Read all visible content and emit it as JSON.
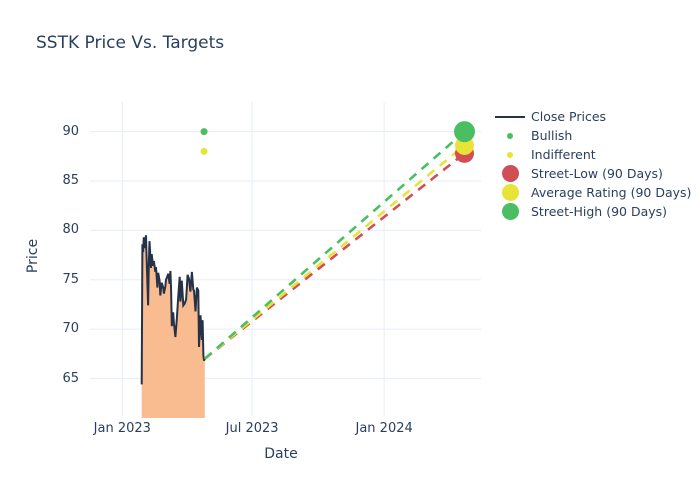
{
  "title": "SSTK Price Vs. Targets",
  "axes": {
    "x": {
      "title": "Date"
    },
    "y": {
      "title": "Price"
    }
  },
  "colors": {
    "text": "#2a3f5f",
    "grid": "#ebf0f8",
    "close_line": "#263247",
    "close_fill": "#f9bb90",
    "bullish_green": "#49bf62",
    "indifferent_yellow": "#e7e338",
    "street_low_red": "#d14e54"
  },
  "legend": {
    "position": "right",
    "items": [
      {
        "label": "Close Prices",
        "type": "line",
        "color": "#263247"
      },
      {
        "label": "Bullish",
        "type": "dot",
        "color": "#49bf62",
        "size": 6
      },
      {
        "label": "Indifferent",
        "type": "dot",
        "color": "#e7e338",
        "size": 6
      },
      {
        "label": "Street-Low (90 Days)",
        "type": "circle",
        "color": "#d14e54",
        "size": 17
      },
      {
        "label": "Average Rating (90 Days)",
        "type": "circle",
        "color": "#e7e338",
        "size": 17
      },
      {
        "label": "Street-High (90 Days)",
        "type": "circle",
        "color": "#49bf62",
        "size": 17
      }
    ]
  },
  "chart_data": {
    "type": "line",
    "title": "SSTK Price Vs. Targets",
    "xlabel": "Date",
    "ylabel": "Price",
    "x_unit": "days since 2023-01-01",
    "x_range": [
      -45,
      500
    ],
    "y_range": [
      61,
      93
    ],
    "grid": true,
    "legend_position": "right",
    "x_ticks": [
      {
        "day": 0,
        "label": "Jan 2023"
      },
      {
        "day": 181,
        "label": "Jul 2023"
      },
      {
        "day": 365,
        "label": "Jan 2024"
      }
    ],
    "y_ticks": [
      65,
      70,
      75,
      80,
      85,
      90
    ],
    "series": [
      {
        "name": "Close Prices",
        "type": "area-line",
        "color": "#263247",
        "fill": "#f9bb90",
        "points": [
          [
            27,
            64.4
          ],
          [
            28,
            78.6
          ],
          [
            29,
            77.8
          ],
          [
            30,
            79.3
          ],
          [
            31,
            78.2
          ],
          [
            33,
            79.5
          ],
          [
            34,
            76.9
          ],
          [
            36,
            72.4
          ],
          [
            37,
            76.5
          ],
          [
            38,
            78.9
          ],
          [
            40,
            76.2
          ],
          [
            41,
            77.6
          ],
          [
            43,
            76.4
          ],
          [
            44,
            76.9
          ],
          [
            46,
            75.8
          ],
          [
            47,
            76.3
          ],
          [
            49,
            74.2
          ],
          [
            50,
            75.7
          ],
          [
            52,
            74.9
          ],
          [
            53,
            73.4
          ],
          [
            55,
            74.7
          ],
          [
            57,
            74.2
          ],
          [
            58,
            73.6
          ],
          [
            60,
            74.3
          ],
          [
            61,
            75.0
          ],
          [
            63,
            75.4
          ],
          [
            64,
            75.6
          ],
          [
            66,
            74.6
          ],
          [
            67,
            75.9
          ],
          [
            68,
            74.0
          ],
          [
            69,
            70.3
          ],
          [
            71,
            71.7
          ],
          [
            72,
            70.6
          ],
          [
            74,
            69.2
          ],
          [
            76,
            71.0
          ],
          [
            78,
            73.2
          ],
          [
            80,
            75.3
          ],
          [
            81,
            72.8
          ],
          [
            83,
            74.9
          ],
          [
            85,
            72.4
          ],
          [
            87,
            72.6
          ],
          [
            89,
            73.0
          ],
          [
            91,
            75.5
          ],
          [
            93,
            75.1
          ],
          [
            95,
            73.8
          ],
          [
            97,
            75.8
          ],
          [
            99,
            74.0
          ],
          [
            100,
            73.9
          ],
          [
            102,
            71.8
          ],
          [
            104,
            74.2
          ],
          [
            106,
            73.9
          ],
          [
            107,
            68.2
          ],
          [
            109,
            71.4
          ],
          [
            111,
            68.9
          ],
          [
            112,
            70.9
          ],
          [
            113,
            67.3
          ],
          [
            114,
            66.8
          ],
          [
            115,
            67.0
          ]
        ]
      },
      {
        "name": "Bullish",
        "type": "scatter",
        "color": "#49bf62",
        "size": 7,
        "points": [
          [
            114,
            90.0
          ]
        ]
      },
      {
        "name": "Indifferent",
        "type": "scatter",
        "color": "#e7e338",
        "size": 7,
        "points": [
          [
            114,
            88.0
          ]
        ]
      },
      {
        "name": "Street-Low (90 Days)",
        "type": "dashed-line-marker",
        "color": "#d14e54",
        "size": 19,
        "points": [
          [
            115,
            67.0
          ],
          [
            477,
            87.8
          ]
        ]
      },
      {
        "name": "Average Rating (90 Days)",
        "type": "dashed-line-marker",
        "color": "#e7e338",
        "size": 19,
        "points": [
          [
            115,
            67.0
          ],
          [
            477,
            88.6
          ]
        ]
      },
      {
        "name": "Street-High (90 Days)",
        "type": "dashed-line-marker",
        "color": "#49bf62",
        "size": 21,
        "points": [
          [
            115,
            67.0
          ],
          [
            477,
            90.0
          ]
        ]
      }
    ]
  }
}
